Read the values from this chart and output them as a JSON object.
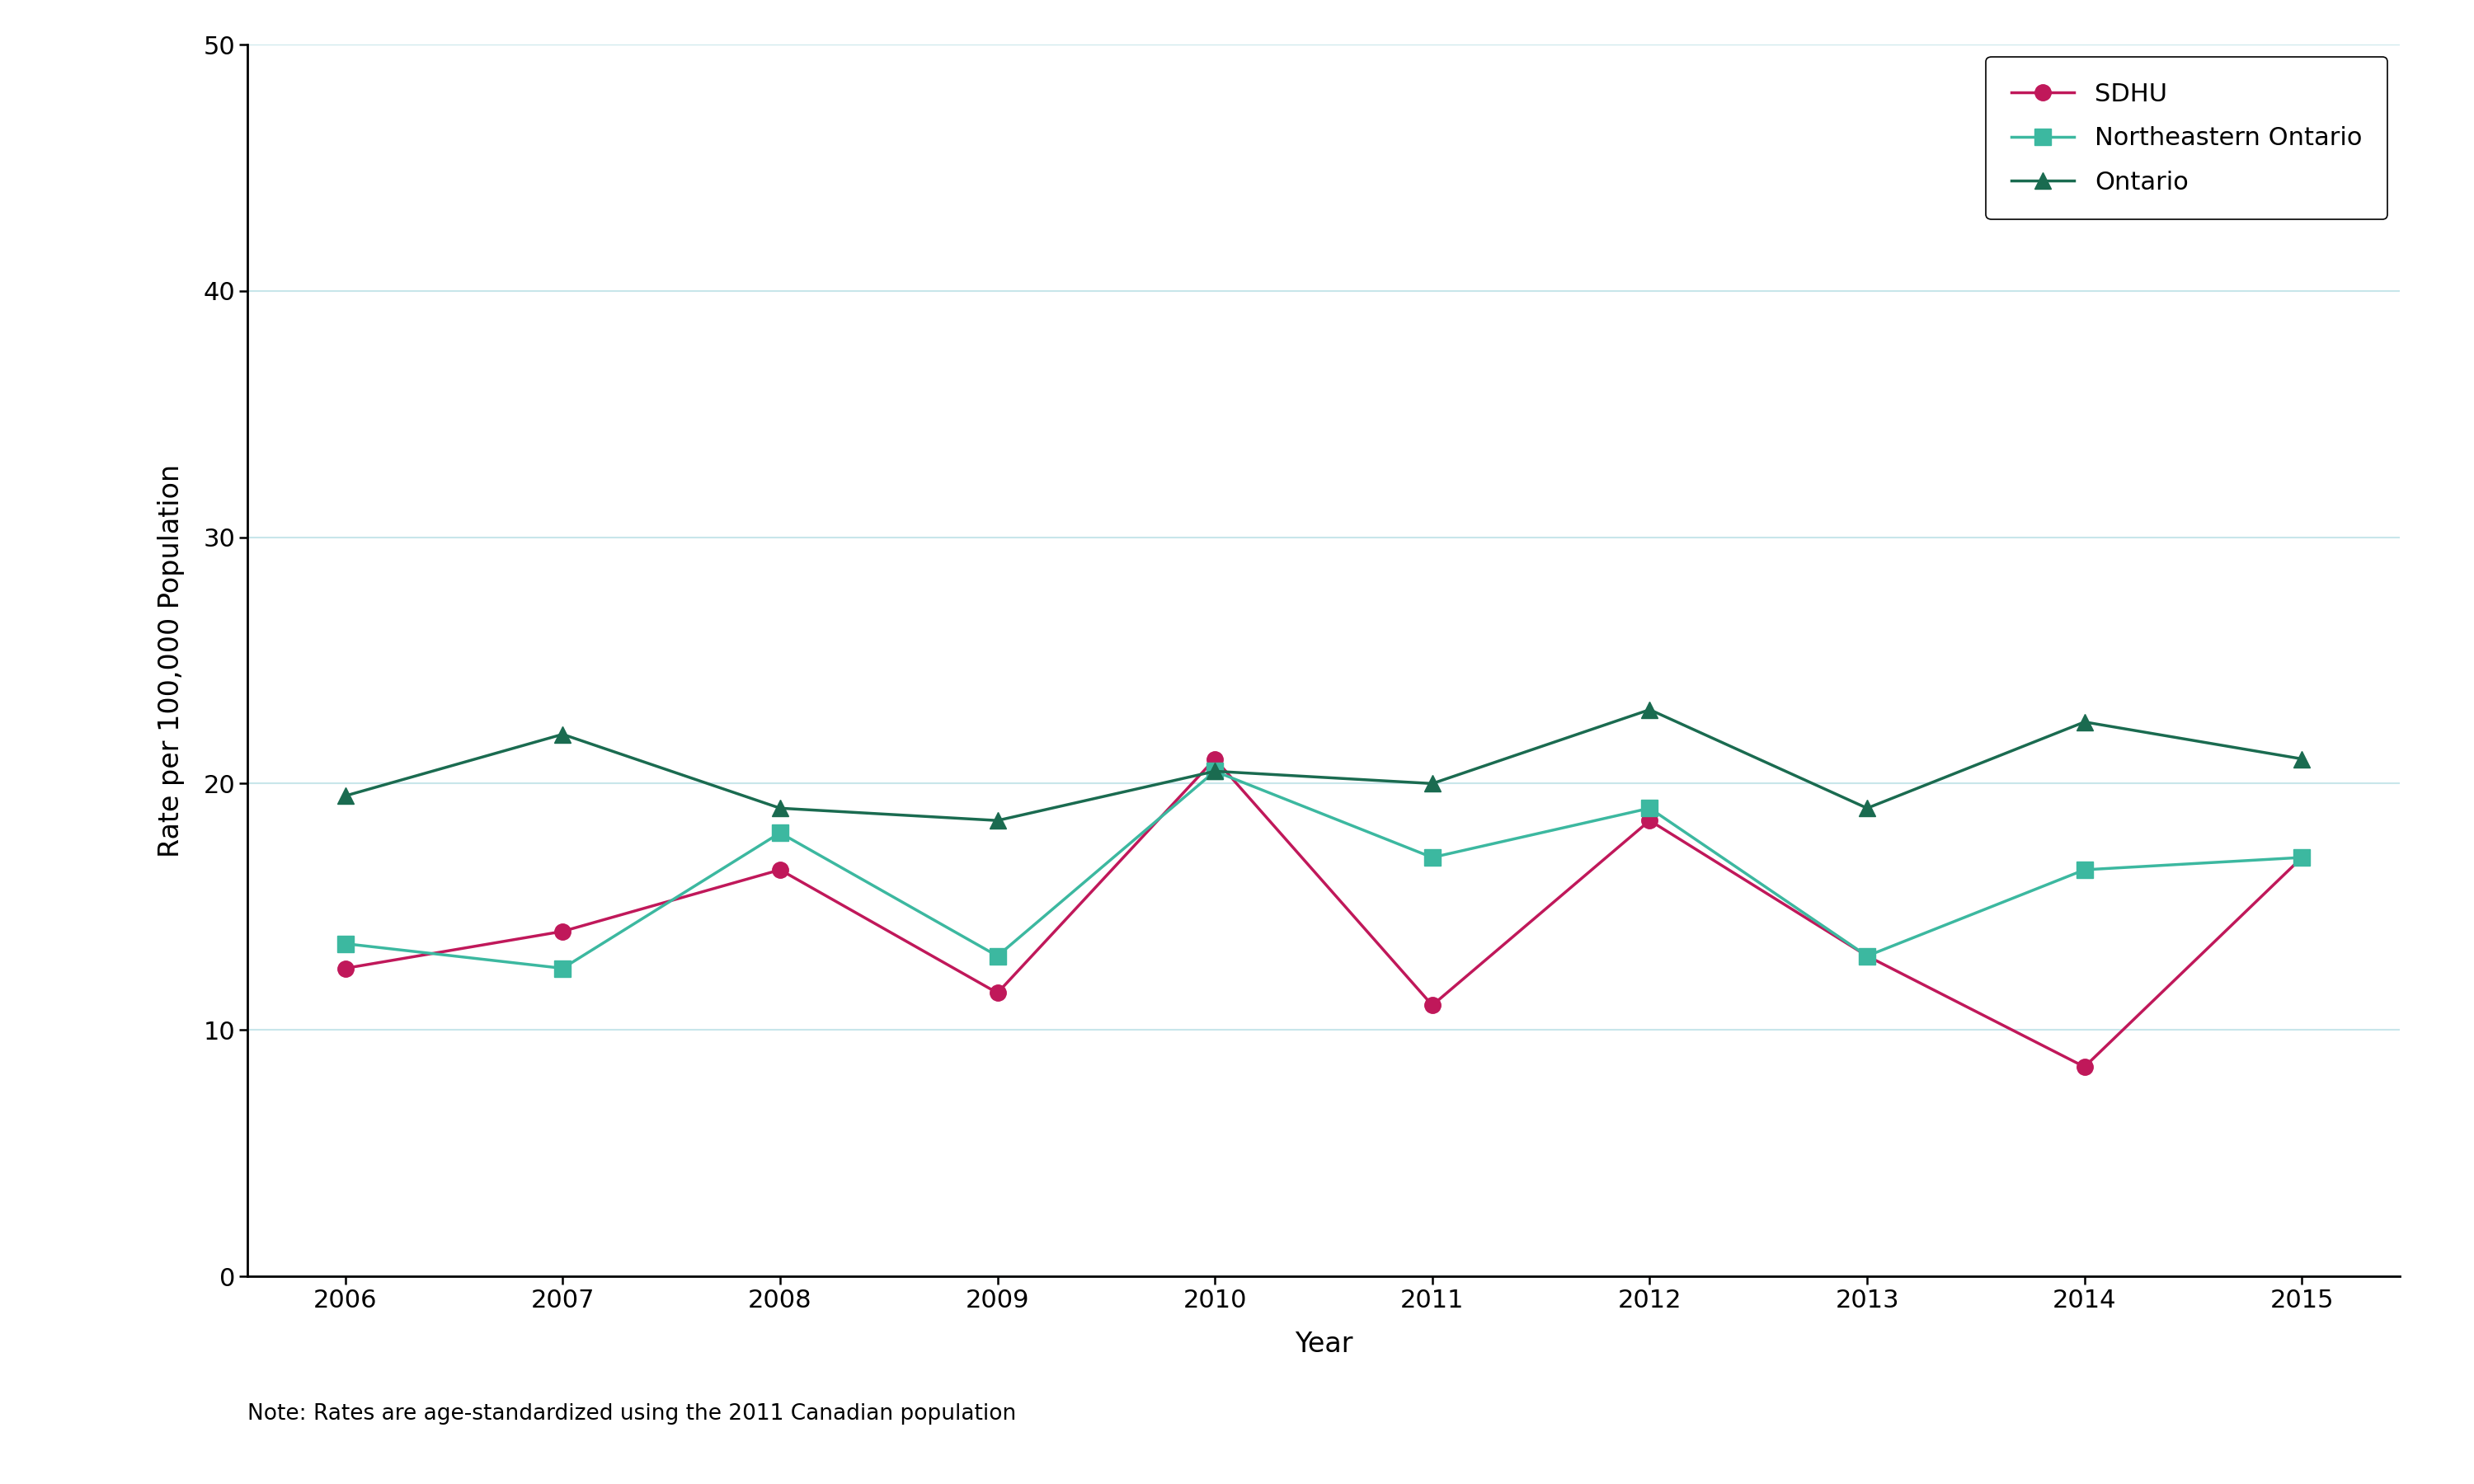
{
  "years": [
    2006,
    2007,
    2008,
    2009,
    2010,
    2011,
    2012,
    2013,
    2014,
    2015
  ],
  "sdhu": [
    12.5,
    14.0,
    16.5,
    11.5,
    21.0,
    11.0,
    18.5,
    13.0,
    8.5,
    17.0
  ],
  "northeastern_ontario": [
    13.5,
    12.5,
    18.0,
    13.0,
    20.5,
    17.0,
    19.0,
    13.0,
    16.5,
    17.0
  ],
  "ontario": [
    19.5,
    22.0,
    19.0,
    18.5,
    20.5,
    20.0,
    23.0,
    19.0,
    22.5,
    21.0
  ],
  "sdhu_color": "#C0185A",
  "northeastern_color": "#3CB8A0",
  "ontario_color": "#1A6B50",
  "sdhu_label": "SDHU",
  "northeastern_label": "Northeastern Ontario",
  "ontario_label": "Ontario",
  "xlabel": "Year",
  "ylabel": "Rate per 100,000 Population",
  "ylim": [
    0,
    50
  ],
  "yticks": [
    0,
    10,
    20,
    30,
    40,
    50
  ],
  "note": "Note: Rates are age-standardized using the 2011 Canadian population",
  "note_color": "#000000",
  "background_color": "#FFFFFF",
  "grid_color": "#C8E6EA",
  "legend_fontsize": 22,
  "axis_label_fontsize": 24,
  "tick_fontsize": 22,
  "note_fontsize": 19,
  "linewidth": 2.5,
  "markersize": 14
}
